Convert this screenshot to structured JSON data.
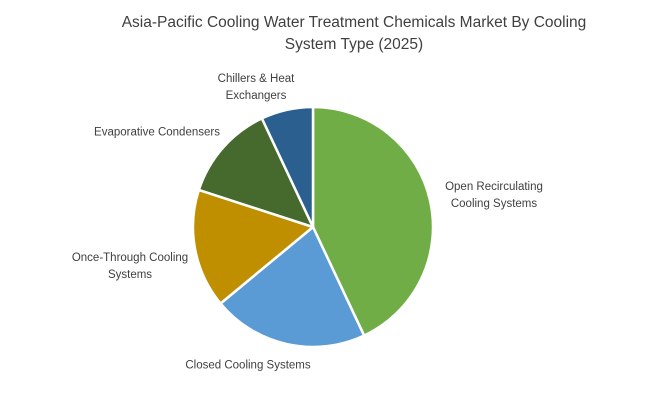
{
  "header": {
    "title_display": "Asia-Pacific Cooling Water Treatment Chemicals Market By Cooling\nSystem Type (2025)"
  },
  "chart_data": {
    "type": "pie",
    "title": "Asia-Pacific Cooling Water Treatment Chemicals Market By Cooling System Type (2025)",
    "labels": [
      "Open Recirculating Cooling Systems",
      "Closed Cooling Systems",
      "Once-Through Cooling Systems",
      "Evaporative Condensers",
      "Chillers & Heat Exchangers"
    ],
    "labels_display": [
      "Open Recirculating\nCooling Systems",
      "Closed Cooling Systems",
      "Once-Through Cooling\nSystems",
      "Evaporative Condensers",
      "Chillers & Heat\nExchangers"
    ],
    "values_percent": [
      43,
      21,
      16,
      13,
      7
    ],
    "colors": [
      "#70AD47",
      "#5B9BD5",
      "#BF8F00",
      "#46692D",
      "#2A5F90"
    ],
    "start_angle_deg": 0,
    "direction": "clockwise",
    "legend": "none",
    "label_position": "outside",
    "slice_separator_color": "#FFFFFF",
    "background_color": "#FFFFFF",
    "title_color": "#404040",
    "label_color": "#404040"
  }
}
